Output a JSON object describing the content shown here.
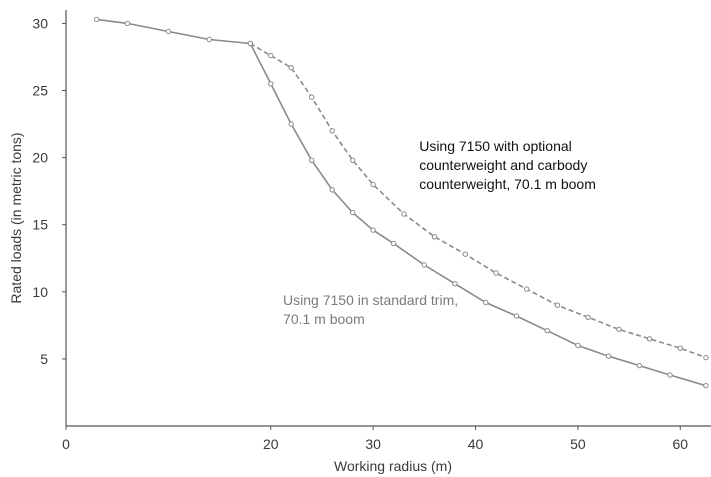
{
  "chart_data": {
    "type": "line",
    "title": "",
    "xlabel": "Working radius (m)",
    "ylabel": "Rated loads (in metric tons)",
    "xlim": [
      0,
      63
    ],
    "ylim": [
      0,
      31
    ],
    "xticks": [
      0,
      20,
      30,
      40,
      50,
      60
    ],
    "yticks": [
      5,
      10,
      15,
      20,
      25,
      30
    ],
    "grid": false,
    "series": [
      {
        "name": "Using 7150 in standard trim, 70.1 m boom",
        "style": "solid",
        "color": "#8a8a8a",
        "x": [
          3,
          6,
          10,
          14,
          18,
          20,
          22,
          24,
          26,
          28,
          30,
          32,
          35,
          38,
          41,
          44,
          47,
          50,
          53,
          56,
          59,
          62.5
        ],
        "y": [
          30.3,
          30.0,
          29.4,
          28.8,
          28.5,
          25.5,
          22.5,
          19.8,
          17.6,
          15.9,
          14.6,
          13.6,
          12.0,
          10.6,
          9.2,
          8.2,
          7.1,
          6.0,
          5.2,
          4.5,
          3.8,
          3.0
        ]
      },
      {
        "name": "Using 7150 with optional counterweight and carbody counterweight, 70.1 m boom",
        "style": "dashed",
        "color": "#8a8a8a",
        "x": [
          18,
          20,
          22,
          24,
          26,
          28,
          30,
          33,
          36,
          39,
          42,
          45,
          48,
          51,
          54,
          57,
          60,
          62.5
        ],
        "y": [
          28.5,
          27.6,
          26.7,
          24.5,
          22.0,
          19.8,
          18.0,
          15.8,
          14.1,
          12.8,
          11.4,
          10.2,
          9.0,
          8.1,
          7.2,
          6.5,
          5.8,
          5.1
        ]
      }
    ],
    "annotations": [
      {
        "lines": [
          "Using 7150 with optional",
          "counterweight and carbody",
          "counterweight, 70.1 m boom"
        ],
        "color": "#111111",
        "x": 34.5,
        "y": 20.5
      },
      {
        "lines": [
          "Using 7150 in standard trim,",
          "70.1 m boom"
        ],
        "color": "#7a7a7a",
        "x": 21.2,
        "y": 9.0
      }
    ]
  }
}
